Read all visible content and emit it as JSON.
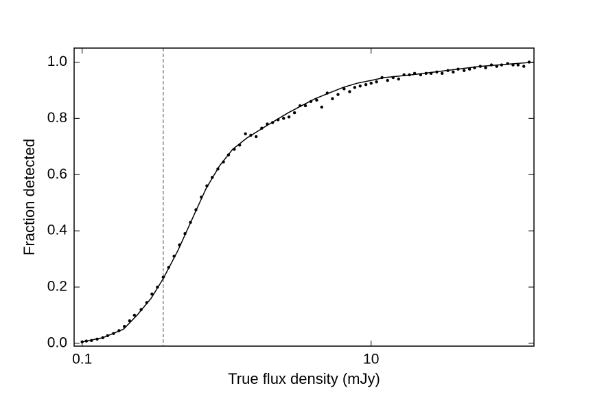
{
  "chart_data": {
    "type": "scatter",
    "xlabel": "True flux density (mJy)",
    "ylabel": "Fraction detected",
    "xscale": "log",
    "xlim": [
      0.088,
      134
    ],
    "ylim": [
      -0.01,
      1.05
    ],
    "xticks": [
      0.1,
      10
    ],
    "yticks": [
      {
        "value": 0,
        "label": "0.0"
      },
      {
        "value": 0.2,
        "label": "0.2"
      },
      {
        "value": 0.4,
        "label": "0.4"
      },
      {
        "value": 0.6,
        "label": "0.6"
      },
      {
        "value": 0.8,
        "label": "0.8"
      },
      {
        "value": 1,
        "label": "1.0"
      }
    ],
    "points": {
      "color": "#000000",
      "x": [
        0.1,
        0.107,
        0.116,
        0.127,
        0.139,
        0.15,
        0.165,
        0.18,
        0.196,
        0.213,
        0.23,
        0.256,
        0.28,
        0.304,
        0.332,
        0.364,
        0.397,
        0.433,
        0.472,
        0.515,
        0.562,
        0.613,
        0.668,
        0.73,
        0.795,
        0.87,
        0.95,
        1.03,
        1.13,
        1.23,
        1.35,
        1.47,
        1.6,
        1.75,
        1.91,
        2.08,
        2.27,
        2.48,
        2.7,
        2.95,
        3.22,
        3.51,
        3.83,
        4.2,
        4.55,
        4.97,
        5.4,
        5.9,
        6.5,
        7.1,
        7.7,
        8.4,
        9.2,
        10,
        10.9,
        11.9,
        13,
        14.2,
        15.5,
        16.9,
        18.4,
        20,
        22,
        24,
        26,
        28.5,
        31,
        34,
        37,
        40,
        44,
        48,
        52,
        57,
        62,
        68,
        74,
        80,
        88,
        96,
        104,
        114,
        124
      ],
      "values": [
        0.005,
        0.008,
        0.01,
        0.015,
        0.02,
        0.027,
        0.035,
        0.045,
        0.06,
        0.08,
        0.1,
        0.12,
        0.145,
        0.175,
        0.2,
        0.235,
        0.27,
        0.31,
        0.35,
        0.39,
        0.43,
        0.475,
        0.52,
        0.56,
        0.59,
        0.62,
        0.645,
        0.67,
        0.69,
        0.705,
        0.745,
        0.74,
        0.735,
        0.765,
        0.78,
        0.785,
        0.795,
        0.8,
        0.805,
        0.82,
        0.845,
        0.845,
        0.86,
        0.865,
        0.84,
        0.89,
        0.87,
        0.885,
        0.905,
        0.895,
        0.91,
        0.915,
        0.92,
        0.925,
        0.93,
        0.945,
        0.935,
        0.945,
        0.94,
        0.955,
        0.955,
        0.96,
        0.955,
        0.96,
        0.96,
        0.965,
        0.96,
        0.97,
        0.965,
        0.975,
        0.97,
        0.975,
        0.98,
        0.985,
        0.98,
        0.99,
        0.985,
        0.99,
        0.995,
        0.99,
        0.99,
        0.985,
        1.0
      ]
    },
    "fit": {
      "color": "#000000",
      "x": [
        0.1,
        0.139,
        0.193,
        0.24,
        0.3,
        0.364,
        0.46,
        0.575,
        0.72,
        0.89,
        1.1,
        1.38,
        1.71,
        2.13,
        2.67,
        3.3,
        4.1,
        5.1,
        6.4,
        8.0,
        10,
        12.3,
        19.2,
        33,
        57,
        134
      ],
      "values": [
        0.005,
        0.02,
        0.05,
        0.1,
        0.16,
        0.23,
        0.33,
        0.44,
        0.55,
        0.63,
        0.69,
        0.73,
        0.76,
        0.79,
        0.82,
        0.845,
        0.87,
        0.89,
        0.91,
        0.925,
        0.935,
        0.945,
        0.955,
        0.97,
        0.985,
        1.0
      ]
    },
    "vline": {
      "value": 0.364,
      "color": "#888888",
      "dashed": true
    }
  }
}
